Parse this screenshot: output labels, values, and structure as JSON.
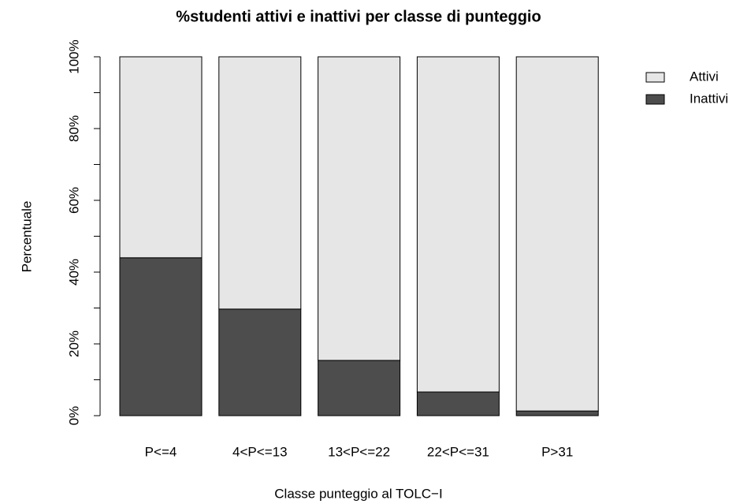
{
  "chart_data": {
    "type": "stacked-bar",
    "title": "%studenti attivi e inattivi per classe di punteggio",
    "xlabel": "Classe punteggio al TOLC−I",
    "ylabel": "Percentuale",
    "categories": [
      "P<=4",
      "4<P<=13",
      "13<P<=22",
      "22<P<=31",
      "P>31"
    ],
    "series": [
      {
        "name": "Attivi",
        "color": "#e6e6e6",
        "values": [
          56,
          70.3,
          84.6,
          93.4,
          98.7
        ]
      },
      {
        "name": "Inattivi",
        "color": "#4d4d4d",
        "values": [
          44,
          29.7,
          15.4,
          6.6,
          1.3
        ]
      }
    ],
    "ylim": [
      0,
      100
    ],
    "yticks": [
      {
        "value": 0,
        "label": "0%"
      },
      {
        "value": 20,
        "label": "20%"
      },
      {
        "value": 40,
        "label": "40%"
      },
      {
        "value": 60,
        "label": "60%"
      },
      {
        "value": 80,
        "label": "80%"
      },
      {
        "value": 100,
        "label": "100%"
      }
    ],
    "yminorticks": [
      10,
      30,
      50,
      70,
      90
    ],
    "legend": "top-right"
  }
}
